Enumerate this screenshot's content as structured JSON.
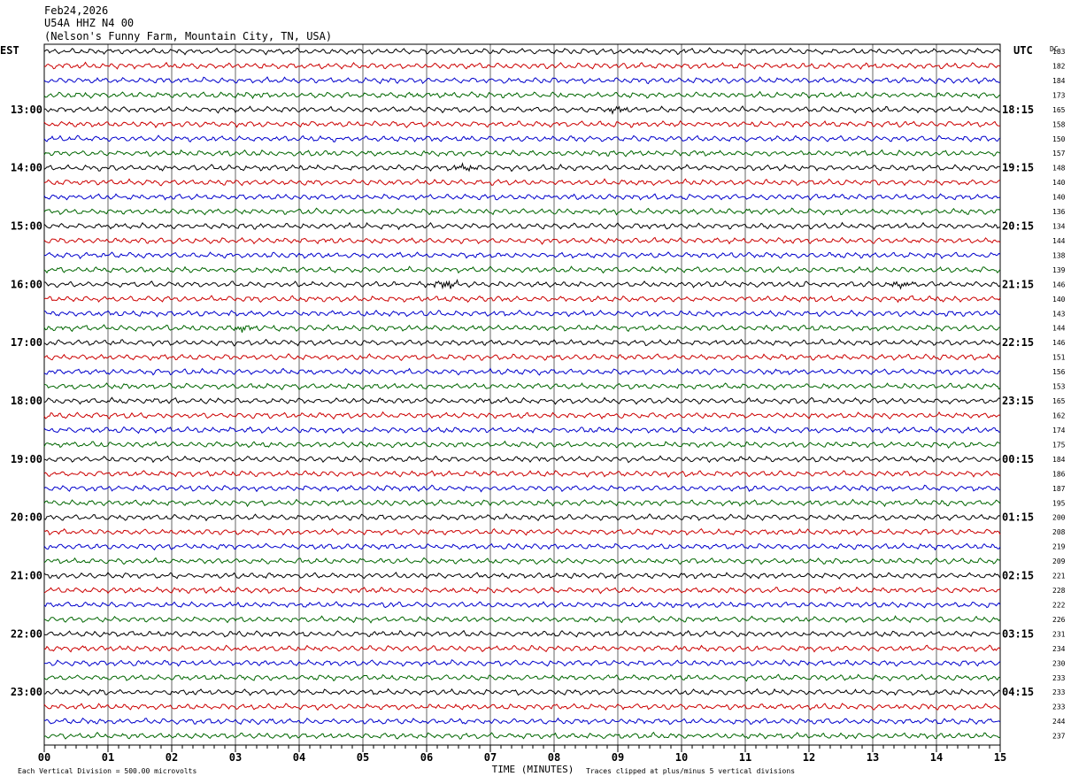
{
  "header": {
    "date": "Feb24,2026",
    "channel": "U54A HHZ N4 00",
    "location": "(Nelson's Funny Farm, Mountain City, TN, USA)"
  },
  "chart_data": {
    "type": "line",
    "left_timezone": "EST",
    "right_timezone": "UTC",
    "dc_label": "DC",
    "xlabel": "TIME (MINUTES)",
    "x_ticks": [
      "00",
      "01",
      "02",
      "03",
      "04",
      "05",
      "06",
      "07",
      "08",
      "09",
      "10",
      "11",
      "12",
      "13",
      "14",
      "15"
    ],
    "xlim": [
      0,
      15
    ],
    "left_hour_labels": [
      "13:00",
      "14:00",
      "15:00",
      "16:00",
      "17:00",
      "18:00",
      "19:00",
      "20:00",
      "21:00",
      "22:00",
      "23:00"
    ],
    "right_hour_labels": [
      "18:15",
      "19:15",
      "20:15",
      "21:15",
      "22:15",
      "23:15",
      "00:15",
      "01:15",
      "02:15",
      "03:15",
      "04:15"
    ],
    "trace_colors": [
      "#000000",
      "#cc0000",
      "#0000cc",
      "#006600"
    ],
    "dc_offsets": [
      183,
      182,
      184,
      173,
      165,
      158,
      150,
      157,
      148,
      140,
      140,
      136,
      134,
      144,
      138,
      139,
      146,
      140,
      143,
      144,
      146,
      151,
      156,
      153,
      165,
      162,
      174,
      175,
      184,
      186,
      187,
      195,
      200,
      208,
      219,
      209,
      221,
      228,
      222,
      226,
      231,
      234,
      230,
      233,
      233,
      233,
      244,
      237
    ],
    "events": [
      {
        "trace": 3,
        "minute": 5.7,
        "amplitude": 1.5
      },
      {
        "trace": 8,
        "minute": 6.6,
        "amplitude": 1.5
      },
      {
        "trace": 16,
        "minute": 6.3,
        "amplitude": 3
      },
      {
        "trace": 16,
        "minute": 13.4,
        "amplitude": 3
      },
      {
        "trace": 17,
        "minute": 13.5,
        "amplitude": 1.5
      },
      {
        "trace": 19,
        "minute": 3.1,
        "amplitude": 3
      },
      {
        "trace": 4,
        "minute": 9.0,
        "amplitude": 1.5
      }
    ],
    "footer_left": "Each Vertical Division =  500.00 microvolts",
    "footer_right": "Traces clipped at plus/minus 5 vertical divisions",
    "grid": true
  }
}
